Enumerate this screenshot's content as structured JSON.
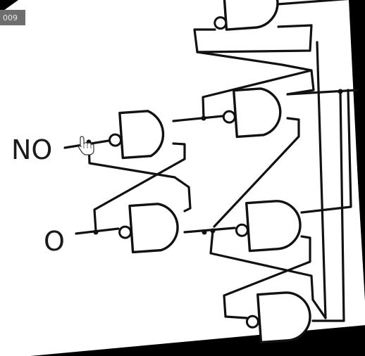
{
  "diagram": {
    "input_labels": [
      "NO",
      "O"
    ],
    "corner_badge": "009",
    "cursor_icon": "hand-pointer-icon"
  }
}
